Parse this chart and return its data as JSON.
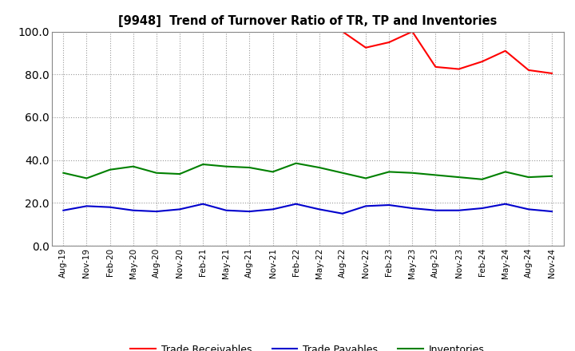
{
  "title": "[9948]  Trend of Turnover Ratio of TR, TP and Inventories",
  "x_labels": [
    "Aug-19",
    "Nov-19",
    "Feb-20",
    "May-20",
    "Aug-20",
    "Nov-20",
    "Feb-21",
    "May-21",
    "Aug-21",
    "Nov-21",
    "Feb-22",
    "May-22",
    "Aug-22",
    "Nov-22",
    "Feb-23",
    "May-23",
    "Aug-23",
    "Nov-23",
    "Feb-24",
    "May-24",
    "Aug-24",
    "Nov-24"
  ],
  "trade_receivables": [
    null,
    null,
    null,
    null,
    null,
    null,
    null,
    null,
    null,
    null,
    null,
    null,
    100.0,
    92.5,
    95.0,
    100.0,
    83.5,
    82.5,
    86.0,
    91.0,
    82.0,
    80.5
  ],
  "trade_payables": [
    16.5,
    18.5,
    18.0,
    16.5,
    16.0,
    17.0,
    19.5,
    16.5,
    16.0,
    17.0,
    19.5,
    17.0,
    15.0,
    18.5,
    19.0,
    17.5,
    16.5,
    16.5,
    17.5,
    19.5,
    17.0,
    16.0
  ],
  "inventories": [
    34.0,
    31.5,
    35.5,
    37.0,
    34.0,
    33.5,
    38.0,
    37.0,
    36.5,
    34.5,
    38.5,
    36.5,
    34.0,
    31.5,
    34.5,
    34.0,
    33.0,
    32.0,
    31.0,
    34.5,
    32.0,
    32.5
  ],
  "ylim": [
    0,
    100
  ],
  "yticks": [
    0.0,
    20.0,
    40.0,
    60.0,
    80.0,
    100.0
  ],
  "tr_color": "#ff0000",
  "tp_color": "#0000cd",
  "inv_color": "#008000",
  "bg_color": "#ffffff",
  "grid_color": "#999999",
  "legend_labels": [
    "Trade Receivables",
    "Trade Payables",
    "Inventories"
  ]
}
